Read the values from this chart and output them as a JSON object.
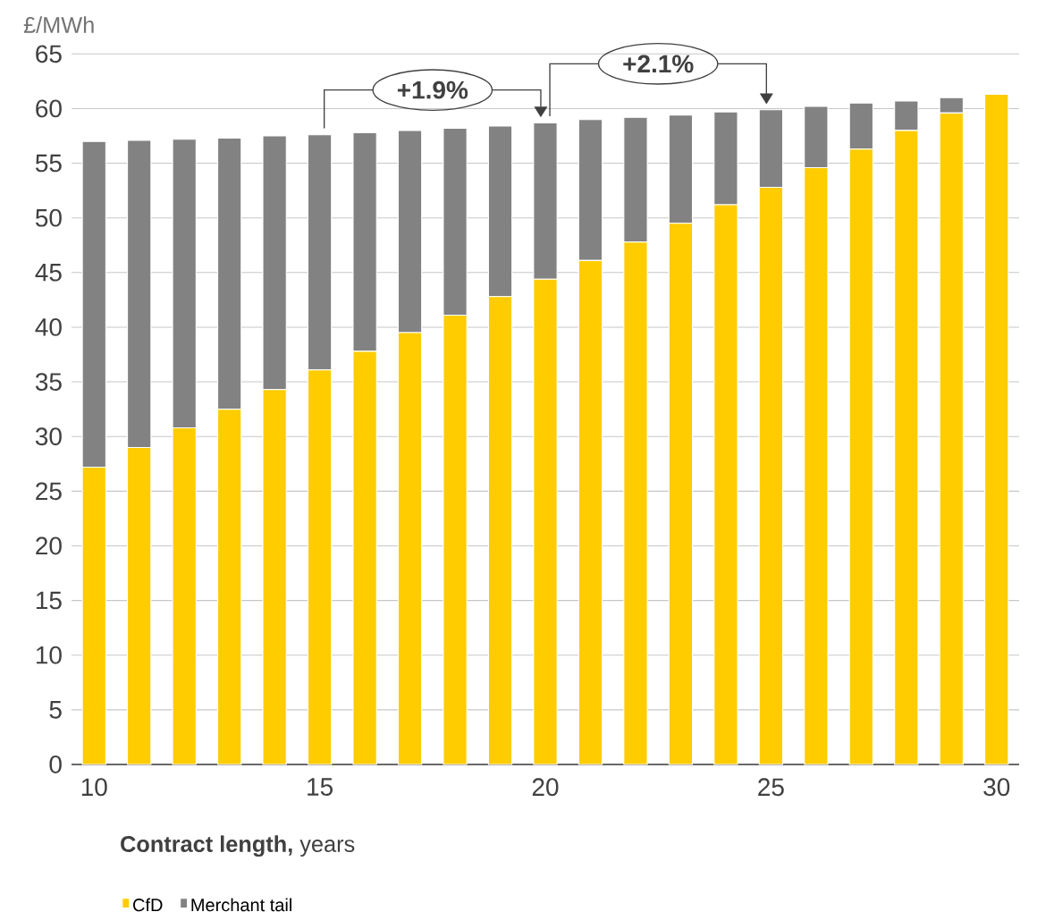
{
  "chart_data": {
    "type": "bar",
    "stacked": true,
    "ylabel": "£/MWh",
    "xlabel": "**Contract length,** years",
    "x": [
      10,
      11,
      12,
      13,
      14,
      15,
      16,
      17,
      18,
      19,
      20,
      21,
      22,
      23,
      24,
      25,
      26,
      27,
      28,
      29,
      30
    ],
    "series": [
      {
        "name": "CfD",
        "color": "#ffcc00",
        "values": [
          27.2,
          29.0,
          30.8,
          32.5,
          34.3,
          36.1,
          37.8,
          39.5,
          41.1,
          42.8,
          44.4,
          46.1,
          47.8,
          49.5,
          51.2,
          52.8,
          54.6,
          56.3,
          58.0,
          59.6,
          61.3
        ]
      },
      {
        "name": "Merchant tail",
        "color": "#828282",
        "values": [
          29.8,
          28.1,
          26.4,
          24.8,
          23.2,
          21.5,
          20.0,
          18.5,
          17.1,
          15.6,
          14.3,
          12.9,
          11.4,
          9.9,
          8.5,
          7.1,
          5.6,
          4.2,
          2.7,
          1.4,
          0
        ]
      }
    ],
    "xlim": [
      9.5,
      30.5
    ],
    "xticks": [
      10,
      15,
      20,
      25,
      30
    ],
    "ylim": [
      0,
      65
    ],
    "yticks": [
      0,
      5,
      10,
      15,
      20,
      25,
      30,
      35,
      40,
      45,
      50,
      55,
      60,
      65
    ],
    "grid": "y",
    "legend": "bottom",
    "annotations": [
      "+1.9%",
      "+2.1%"
    ]
  }
}
